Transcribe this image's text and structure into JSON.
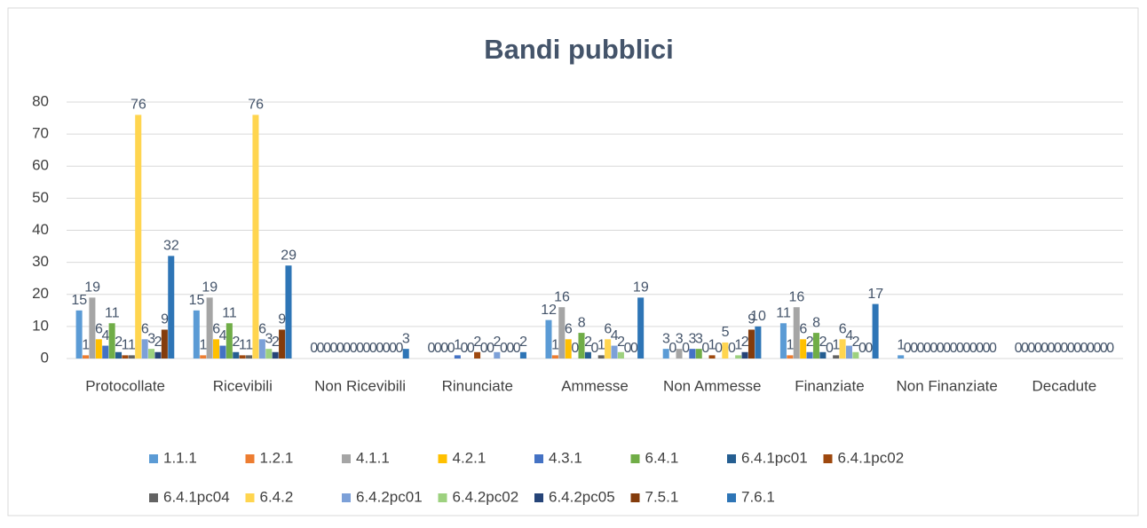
{
  "chart_data": {
    "type": "bar",
    "title": "Bandi pubblici",
    "categories": [
      "Protocollate",
      "Ricevibili",
      "Non Ricevibili",
      "Rinunciate",
      "Ammesse",
      "Non Ammesse",
      "Finanziate",
      "Non Finanziate",
      "Decadute"
    ],
    "ylim": [
      0,
      80
    ],
    "yticks": [
      0,
      10,
      20,
      30,
      40,
      50,
      60,
      70,
      80
    ],
    "grid": true,
    "legend": "bottom",
    "series": [
      {
        "name": "1.1.1",
        "color": "#5b9bd5",
        "values": [
          15,
          15,
          0,
          0,
          12,
          3,
          11,
          1,
          0
        ]
      },
      {
        "name": "1.2.1",
        "color": "#ed7d31",
        "values": [
          1,
          1,
          0,
          0,
          1,
          0,
          1,
          0,
          0
        ]
      },
      {
        "name": "4.1.1",
        "color": "#a5a5a5",
        "values": [
          19,
          19,
          0,
          0,
          16,
          3,
          16,
          0,
          0
        ]
      },
      {
        "name": "4.2.1",
        "color": "#ffc000",
        "values": [
          6,
          6,
          0,
          0,
          6,
          0,
          6,
          0,
          0
        ]
      },
      {
        "name": "4.3.1",
        "color": "#4472c4",
        "values": [
          4,
          4,
          0,
          1,
          0,
          3,
          2,
          0,
          0
        ]
      },
      {
        "name": "6.4.1",
        "color": "#70ad47",
        "values": [
          11,
          11,
          0,
          0,
          8,
          3,
          8,
          0,
          0
        ]
      },
      {
        "name": "6.4.1pc01",
        "color": "#255e91",
        "values": [
          2,
          2,
          0,
          0,
          2,
          0,
          2,
          0,
          0
        ]
      },
      {
        "name": "6.4.1pc02",
        "color": "#9e480e",
        "values": [
          1,
          1,
          0,
          2,
          0,
          1,
          0,
          0,
          0
        ]
      },
      {
        "name": "6.4.1pc04",
        "color": "#636363",
        "values": [
          1,
          1,
          0,
          0,
          1,
          0,
          1,
          0,
          0
        ]
      },
      {
        "name": "6.4.2",
        "color": "#ffd54f",
        "values": [
          76,
          76,
          0,
          0,
          6,
          5,
          6,
          0,
          0
        ]
      },
      {
        "name": "6.4.2pc01",
        "color": "#7ca0d8",
        "values": [
          6,
          6,
          0,
          2,
          4,
          0,
          4,
          0,
          0
        ]
      },
      {
        "name": "6.4.2pc02",
        "color": "#9dd17f",
        "values": [
          3,
          3,
          0,
          0,
          2,
          1,
          2,
          0,
          0
        ]
      },
      {
        "name": "6.4.2pc05",
        "color": "#264478",
        "values": [
          2,
          2,
          0,
          0,
          0,
          2,
          0,
          0,
          0
        ]
      },
      {
        "name": "7.5.1",
        "color": "#843c0c",
        "values": [
          9,
          9,
          0,
          0,
          0,
          9,
          0,
          0,
          0
        ]
      },
      {
        "name": "7.6.1",
        "color": "#2e75b6",
        "values": [
          32,
          29,
          3,
          2,
          19,
          10,
          17,
          0,
          0
        ]
      }
    ]
  }
}
